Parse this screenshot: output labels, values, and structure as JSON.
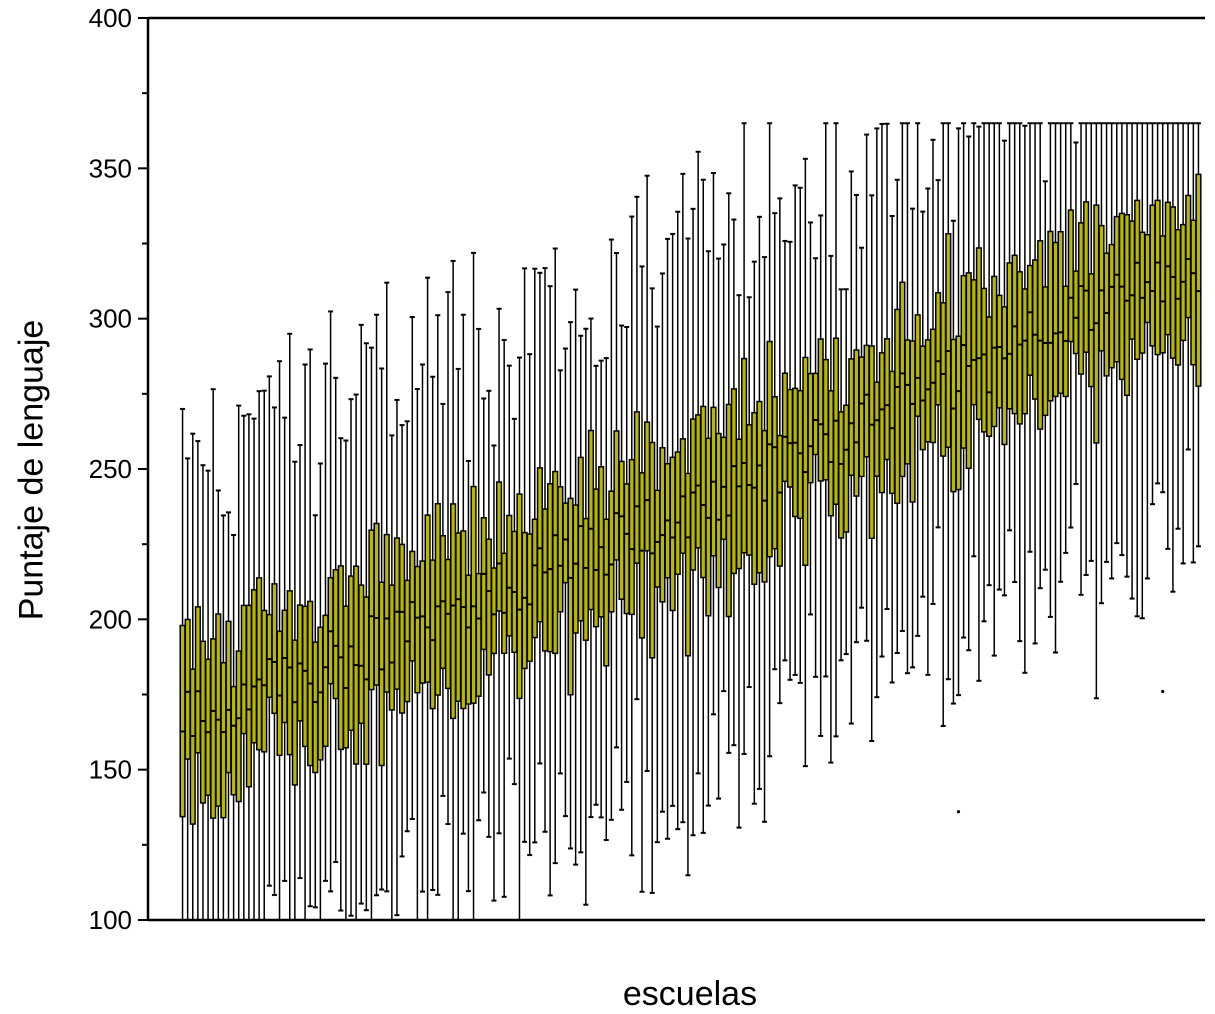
{
  "chart_data": {
    "type": "boxplot",
    "title": "",
    "xlabel": "escuelas",
    "ylabel": "Puntaje de lenguaje",
    "ylim": [
      100,
      400
    ],
    "yticks": [
      100,
      150,
      200,
      250,
      300,
      350,
      400
    ],
    "grid": false,
    "legend": "none",
    "box_color": "#b8b800",
    "box_stroke": "#000000",
    "n_schools": 200,
    "median_trend": {
      "first": 167,
      "last": 320
    },
    "q1_trend": {
      "first": 147,
      "last": 300
    },
    "q3_trend": {
      "first": 190,
      "last": 338
    },
    "whisker_min_range": [
      100,
      240
    ],
    "whisker_max_cap": 365,
    "outliers": [
      {
        "school_index": 152,
        "value": 136
      },
      {
        "school_index": 192,
        "value": 176
      }
    ]
  }
}
